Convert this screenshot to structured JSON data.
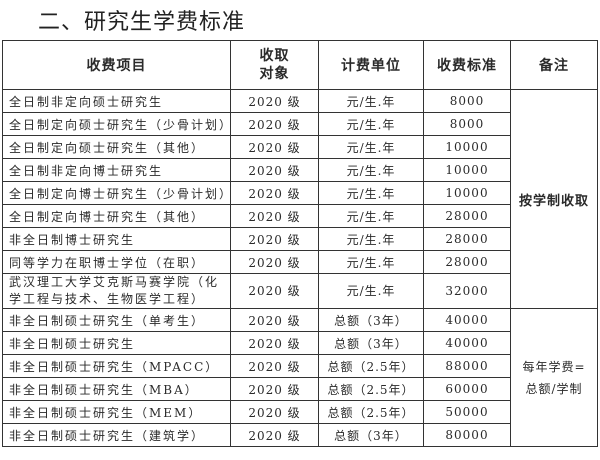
{
  "title": "二、研究生学费标准",
  "headers": [
    "收费项目",
    "收取对象",
    "计费单位",
    "收费标准",
    "备注"
  ],
  "rows": [
    {
      "item": "全日制非定向硕士研究生",
      "target": "2020 级",
      "unit": "元/生.年",
      "fee": "8000"
    },
    {
      "item": "全日制定向硕士研究生（少骨计划）",
      "target": "2020 级",
      "unit": "元/生.年",
      "fee": "8000"
    },
    {
      "item": "全日制定向硕士研究生（其他）",
      "target": "2020 级",
      "unit": "元/生.年",
      "fee": "10000"
    },
    {
      "item": "全日制非定向博士研究生",
      "target": "2020 级",
      "unit": "元/生.年",
      "fee": "10000"
    },
    {
      "item": "全日制定向博士研究生（少骨计划）",
      "target": "2020 级",
      "unit": "元/生.年",
      "fee": "10000"
    },
    {
      "item": "全日制定向博士研究生（其他）",
      "target": "2020 级",
      "unit": "元/生.年",
      "fee": "28000"
    },
    {
      "item": "非全日制博士研究生",
      "target": "2020 级",
      "unit": "元/生.年",
      "fee": "28000"
    },
    {
      "item": "同等学力在职博士学位（在职）",
      "target": "2020 级",
      "unit": "元/生.年",
      "fee": "28000"
    },
    {
      "item": "武汉理工大学艾克斯马赛学院（化学工程与技术、生物医学工程）",
      "target": "2020 级",
      "unit": "元/生.年",
      "fee": "32000"
    },
    {
      "item": "非全日制硕士研究生（单考生）",
      "target": "2020 级",
      "unit": "总额（3年）",
      "fee": "40000"
    },
    {
      "item": "非全日制硕士研究生",
      "target": "2020 级",
      "unit": "总额（3年）",
      "fee": "40000"
    },
    {
      "item": "非全日制硕士研究生（MPACC）",
      "target": "2020 级",
      "unit": "总额（2.5年）",
      "fee": "88000"
    },
    {
      "item": "非全日制硕士研究生（MBA）",
      "target": "2020 级",
      "unit": "总额（2.5年）",
      "fee": "60000"
    },
    {
      "item": "非全日制硕士研究生（MEM）",
      "target": "2020 级",
      "unit": "总额（2.5年）",
      "fee": "50000"
    },
    {
      "item": "非全日制硕士研究生（建筑学）",
      "target": "2020 级",
      "unit": "总额（3年）",
      "fee": "80000"
    }
  ],
  "notes": {
    "group1": "按学制收取",
    "group2_line1": "每年学费=",
    "group2_line2": "总额/学制"
  }
}
